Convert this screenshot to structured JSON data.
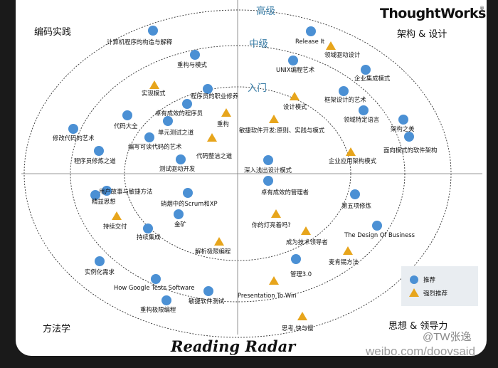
{
  "brand": {
    "name": "ThoughtWorks",
    "mark": "®"
  },
  "title": "Reading Radar",
  "rings": [
    "入门",
    "中级",
    "高级"
  ],
  "quadrants": {
    "top_left": "编码实践",
    "top_right": "架构 & 设计",
    "bottom_left": "方法学",
    "bottom_right": "思想 & 领导力"
  },
  "legend": {
    "recommended": "推荐",
    "strongly_recommended": "强烈推荐"
  },
  "colors": {
    "recommended": "#4b90d4",
    "strongly_recommended": "#e7a51c",
    "ring_label": "#3d7fa8"
  },
  "books": [
    {
      "title": "计算机程序的构造与解释",
      "marker": "circle"
    },
    {
      "title": "重构与模式",
      "marker": "circle"
    },
    {
      "title": "实现模式",
      "marker": "triangle"
    },
    {
      "title": "程序员的职业修养",
      "marker": "circle"
    },
    {
      "title": "卓有成效的程序员",
      "marker": "circle"
    },
    {
      "title": "代码大全",
      "marker": "circle"
    },
    {
      "title": "重构",
      "marker": "triangle"
    },
    {
      "title": "单元测试之道",
      "marker": "circle"
    },
    {
      "title": "修改代码的艺术",
      "marker": "circle"
    },
    {
      "title": "编写可读代码的艺术",
      "marker": "circle"
    },
    {
      "title": "程序员修炼之道",
      "marker": "circle"
    },
    {
      "title": "代码整洁之道",
      "marker": "triangle"
    },
    {
      "title": "测试驱动开发",
      "marker": "circle"
    },
    {
      "title": "Release It",
      "marker": "circle"
    },
    {
      "title": "领域驱动设计",
      "marker": "triangle"
    },
    {
      "title": "UNIX编程艺术",
      "marker": "circle"
    },
    {
      "title": "企业集成模式",
      "marker": "circle"
    },
    {
      "title": "设计模式",
      "marker": "triangle"
    },
    {
      "title": "框架设计的艺术",
      "marker": "circle"
    },
    {
      "title": "领域特定语言",
      "marker": "circle"
    },
    {
      "title": "敏捷软件开发:原则、实践与模式",
      "marker": "triangle"
    },
    {
      "title": "架构之美",
      "marker": "circle"
    },
    {
      "title": "面向模式的软件架构",
      "marker": "circle"
    },
    {
      "title": "企业应用架构模式",
      "marker": "triangle"
    },
    {
      "title": "深入浅出设计模式",
      "marker": "circle"
    },
    {
      "title": "用户故事与敏捷方法",
      "marker": "circle"
    },
    {
      "title": "精益思想",
      "marker": "circle"
    },
    {
      "title": "硝烟中的Scrum和XP",
      "marker": "circle"
    },
    {
      "title": "持续交付",
      "marker": "triangle"
    },
    {
      "title": "金矿",
      "marker": "circle"
    },
    {
      "title": "持续集成",
      "marker": "circle"
    },
    {
      "title": "解析极限编程",
      "marker": "triangle"
    },
    {
      "title": "实例化需求",
      "marker": "circle"
    },
    {
      "title": "How Google Tests Software",
      "marker": "circle"
    },
    {
      "title": "重构极限编程",
      "marker": "circle"
    },
    {
      "title": "敏捷软件测试",
      "marker": "circle"
    },
    {
      "title": "卓有成效的管理者",
      "marker": "circle"
    },
    {
      "title": "第五项修炼",
      "marker": "circle"
    },
    {
      "title": "你的灯亮着吗?",
      "marker": "triangle"
    },
    {
      "title": "The Design Of Business",
      "marker": "circle"
    },
    {
      "title": "成为技术领导者",
      "marker": "triangle"
    },
    {
      "title": "麦肯锡方法",
      "marker": "triangle"
    },
    {
      "title": "管理3.0",
      "marker": "circle"
    },
    {
      "title": "Presentation To Win",
      "marker": "triangle"
    },
    {
      "title": "思考,快与慢",
      "marker": "triangle"
    }
  ],
  "watermark": {
    "handle": "@TW张逸",
    "url": "weibo.com/doovsaid"
  }
}
